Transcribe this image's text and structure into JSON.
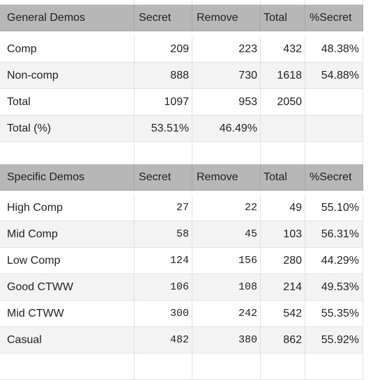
{
  "general": {
    "header": [
      "General Demos",
      "Secret",
      "Remove",
      "Total",
      "%Secret"
    ],
    "rows": [
      [
        "Comp",
        "209",
        "223",
        "432",
        "48.38%"
      ],
      [
        "Non-comp",
        "888",
        "730",
        "1618",
        "54.88%"
      ],
      [
        "Total",
        "1097",
        "953",
        "2050",
        ""
      ],
      [
        "Total (%)",
        "53.51%",
        "46.49%",
        "",
        ""
      ]
    ]
  },
  "specific": {
    "header": [
      "Specific Demos",
      "Secret",
      "Remove",
      "Total",
      "%Secret"
    ],
    "rows": [
      [
        "High Comp",
        "27",
        "22",
        "49",
        "55.10%"
      ],
      [
        "Mid Comp",
        "58",
        "45",
        "103",
        "56.31%"
      ],
      [
        "Low Comp",
        "124",
        "156",
        "280",
        "44.29%"
      ],
      [
        "Good CTWW",
        "106",
        "108",
        "214",
        "49.53%"
      ],
      [
        "Mid CTWW",
        "300",
        "242",
        "542",
        "55.35%"
      ],
      [
        "Casual",
        "482",
        "380",
        "862",
        "55.92%"
      ]
    ]
  },
  "colors": {
    "header_bg": "#b7b7b7",
    "alt_row_bg": "#f3f3f3",
    "gridline": "#e2e2e2"
  }
}
